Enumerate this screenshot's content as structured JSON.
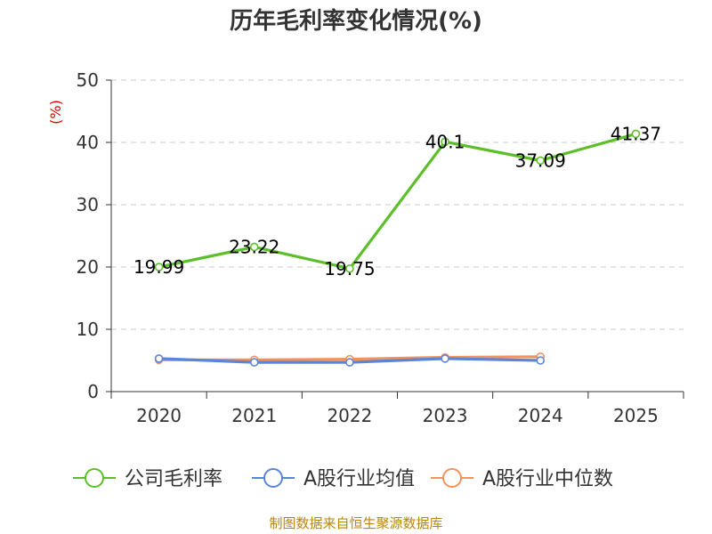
{
  "chart_data": {
    "type": "line",
    "title": "历年毛利率变化情况(%)",
    "ylabel": "(%)",
    "xlabel": "",
    "categories": [
      "2020",
      "2021",
      "2022",
      "2023",
      "2024",
      "2025"
    ],
    "ylim": [
      0,
      50
    ],
    "yticks": [
      0,
      10,
      20,
      30,
      40,
      50
    ],
    "grid": true,
    "legend_position": "bottom",
    "series": [
      {
        "name": "公司毛利率",
        "color": "#5cbf2a",
        "values": [
          19.99,
          23.22,
          19.75,
          40.1,
          37.09,
          41.37
        ],
        "show_labels": true
      },
      {
        "name": "A股行业均值",
        "color": "#5b86d6",
        "values": [
          5.3,
          4.7,
          4.7,
          5.3,
          5.0,
          null
        ],
        "show_labels": false
      },
      {
        "name": "A股行业中位数",
        "color": "#f0935e",
        "values": [
          5.1,
          5.1,
          5.2,
          5.5,
          5.6,
          null
        ],
        "show_labels": false
      }
    ],
    "source": "制图数据来自恒生聚源数据库"
  }
}
